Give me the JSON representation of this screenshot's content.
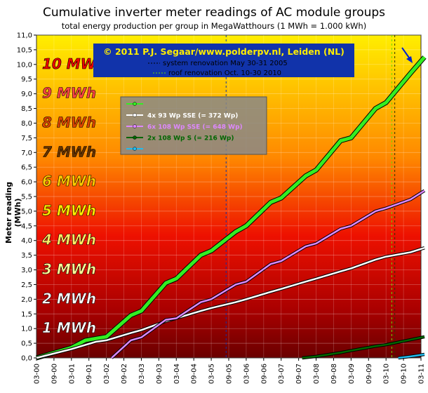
{
  "chart_data": {
    "type": "line",
    "title": "Cumulative inverter meter readings of AC module groups",
    "subtitle": "total energy production per group in MegaWatthours (1 MWh = 1.000 kWh)",
    "ylabel": "Meter reading (MWh)",
    "ylim": [
      0,
      11
    ],
    "yticks": [
      "0,0",
      "0,5",
      "1,0",
      "1,5",
      "2,0",
      "2,5",
      "3,0",
      "3,5",
      "4,0",
      "4,5",
      "5,0",
      "5,5",
      "6,0",
      "6,5",
      "7,0",
      "7,5",
      "8,0",
      "8,5",
      "9,0",
      "9,5",
      "10,0",
      "10,5",
      "11,0"
    ],
    "xticks": [
      "03-00",
      "09-00",
      "03-01",
      "09-01",
      "03-02",
      "09-02",
      "03-03",
      "09-03",
      "03-04",
      "09-04",
      "03-05",
      "09-05",
      "03-06",
      "09-06",
      "03-07",
      "09-07",
      "03-08",
      "09-08",
      "03-09",
      "09-09",
      "03-10",
      "09-10",
      "03-11"
    ],
    "mwh_labels": [
      "1 MWh",
      "2 MWh",
      "3 MWh",
      "4 MWh",
      "5 MWh",
      "6 MWh",
      "7 MWh",
      "8 MWh",
      "9 MWh",
      "10 MWh"
    ],
    "grid": true,
    "legend_placement": "left-center",
    "annotations": {
      "copyright": "© 2011 P.J. Segaar/www.polderpv.nl, Leiden (NL)",
      "vline1_label": "system renovation May 30-31 2005",
      "vline2_label": "roof renovation Oct. 10-30 2010"
    },
    "series": [
      {
        "name": "",
        "color": "#33ee22",
        "x": [
          0,
          1,
          1.4,
          2,
          2.7,
          3,
          3.7,
          4,
          4.7,
          5,
          5.7,
          6,
          6.7,
          7,
          7.7,
          8,
          8.7,
          9,
          9.7,
          10,
          10.7,
          11.1
        ],
        "y": [
          0,
          0.35,
          0.6,
          0.72,
          1.45,
          1.6,
          2.55,
          2.7,
          3.5,
          3.65,
          4.3,
          4.5,
          5.3,
          5.45,
          6.2,
          6.4,
          7.4,
          7.5,
          8.5,
          8.7,
          9.7,
          10.25
        ]
      },
      {
        "name": "4x 93 Wp SSE (= 372 Wp)",
        "color": "#ffffff",
        "x": [
          0,
          1,
          1.7,
          2,
          2.7,
          3,
          3.7,
          4,
          4.7,
          5,
          5.7,
          6,
          6.7,
          7,
          7.7,
          8,
          8.7,
          9,
          9.7,
          10,
          10.7,
          11.1
        ],
        "y": [
          0,
          0.3,
          0.55,
          0.6,
          0.85,
          0.95,
          1.25,
          1.35,
          1.6,
          1.7,
          1.9,
          2.0,
          2.25,
          2.35,
          2.6,
          2.7,
          2.95,
          3.05,
          3.35,
          3.45,
          3.6,
          3.75
        ]
      },
      {
        "name": "6x 108 Wp SSE (= 648 Wp)",
        "color": "#dd88ff",
        "x": [
          2.15,
          2.7,
          3,
          3.7,
          4,
          4.7,
          5,
          5.7,
          6,
          6.7,
          7,
          7.7,
          8,
          8.7,
          9,
          9.7,
          10,
          10.7,
          11.1
        ],
        "y": [
          0,
          0.6,
          0.7,
          1.3,
          1.35,
          1.9,
          2.0,
          2.5,
          2.6,
          3.2,
          3.3,
          3.8,
          3.9,
          4.4,
          4.5,
          5.0,
          5.1,
          5.4,
          5.7
        ]
      },
      {
        "name": "2x 108 Wp S (= 216 Wp)",
        "color": "#006600",
        "x": [
          7.6,
          8,
          8.7,
          9,
          9.7,
          10,
          10.7,
          11.1
        ],
        "y": [
          0,
          0.05,
          0.18,
          0.25,
          0.4,
          0.45,
          0.62,
          0.72
        ]
      },
      {
        "name": "",
        "color": "#22bbee",
        "x": [
          10.35,
          10.7,
          11.1
        ],
        "y": [
          0,
          0.05,
          0.12
        ]
      }
    ]
  }
}
